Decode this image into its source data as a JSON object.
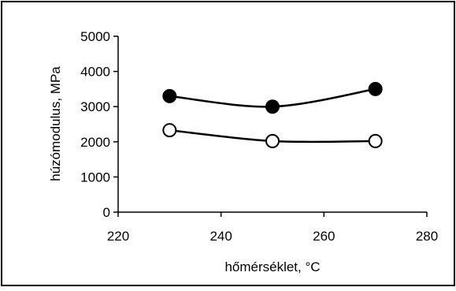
{
  "chart_data": {
    "type": "line",
    "title": "",
    "xlabel": "hőmérséklet, °C",
    "ylabel": "húzómodulus, MPa",
    "xlim": [
      220,
      280
    ],
    "ylim": [
      0,
      5000
    ],
    "x_ticks": [
      220,
      240,
      260,
      280
    ],
    "y_ticks": [
      0,
      1000,
      2000,
      3000,
      4000,
      5000
    ],
    "grid": false,
    "legend": "none",
    "series": [
      {
        "marker": "filled-circle",
        "x": [
          230,
          250,
          270
        ],
        "y": [
          3300,
          3000,
          3500
        ]
      },
      {
        "marker": "open-circle",
        "x": [
          230,
          250,
          270
        ],
        "y": [
          2330,
          2020,
          2020
        ]
      }
    ],
    "colors": {
      "line": "#000000",
      "marker_fill_filled": "#000000",
      "marker_fill_open": "#ffffff",
      "frame": "#000000"
    }
  }
}
